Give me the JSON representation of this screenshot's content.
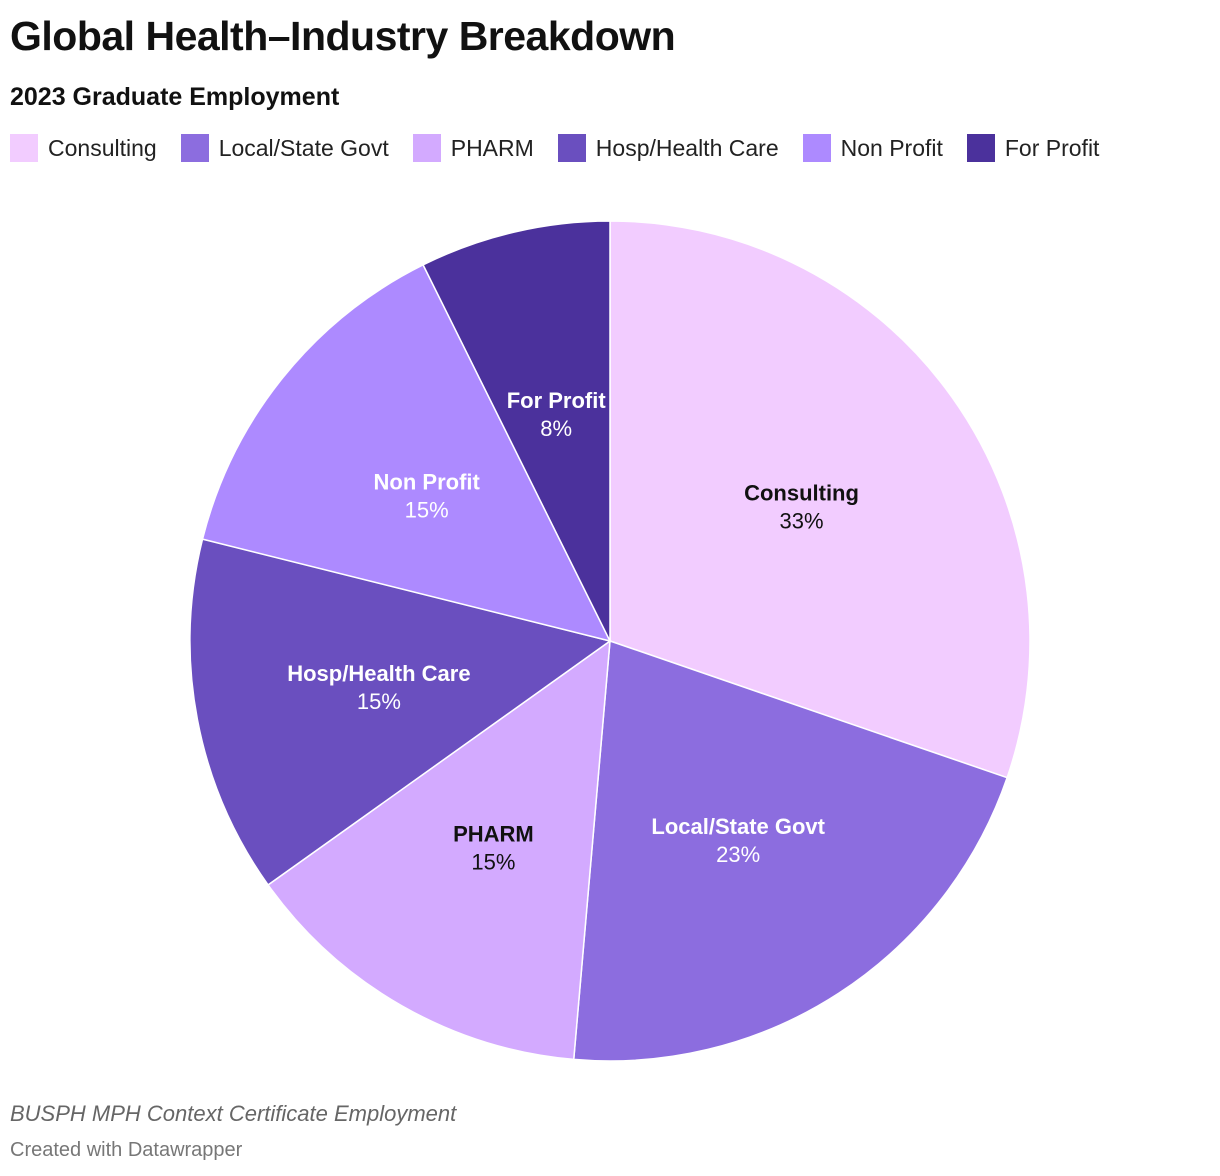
{
  "header": {
    "title": "Global Health–Industry Breakdown",
    "subtitle": "2023 Graduate Employment"
  },
  "footer": {
    "source": "BUSPH MPH Context Certificate Employment",
    "credit": "Created with Datawrapper"
  },
  "chart_data": {
    "type": "pie",
    "title": "Global Health–Industry Breakdown",
    "subtitle": "2023 Graduate Employment",
    "legend_position": "top",
    "start": "top, clockwise",
    "slices": [
      {
        "label": "Consulting",
        "value": 33,
        "display": "33%",
        "color": "#f2ccff",
        "label_color": "#111111"
      },
      {
        "label": "Local/State Govt",
        "value": 23,
        "display": "23%",
        "color": "#8c6ddf",
        "label_color": "#ffffff"
      },
      {
        "label": "PHARM",
        "value": 15,
        "display": "15%",
        "color": "#d3aaff",
        "label_color": "#111111"
      },
      {
        "label": "Hosp/Health Care",
        "value": 15,
        "display": "15%",
        "color": "#6a4fbf",
        "label_color": "#ffffff"
      },
      {
        "label": "Non Profit",
        "value": 15,
        "display": "15%",
        "color": "#ad8aff",
        "label_color": "#ffffff"
      },
      {
        "label": "For Profit",
        "value": 8,
        "display": "8%",
        "color": "#4b319c",
        "label_color": "#ffffff"
      }
    ]
  }
}
